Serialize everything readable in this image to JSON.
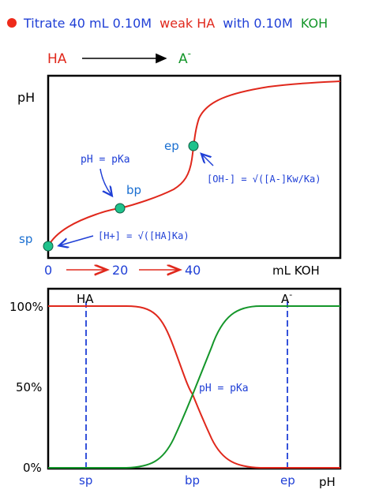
{
  "title": {
    "bullet_color": "#ee2a1a",
    "part1": "Titrate 40 mL 0.10M",
    "part2": "weak HA",
    "part3": "with 0.10M",
    "part4": "KOH"
  },
  "reaction": {
    "reactant": "HA",
    "product": "A",
    "product_charge": "-"
  },
  "chart_top": {
    "type": "line",
    "ylabel": "pH",
    "xlabel": "mL KOH",
    "x_ticks": [
      "0",
      "20",
      "40"
    ],
    "points": [
      {
        "label": "sp",
        "x": 0
      },
      {
        "label": "bp",
        "x": 20
      },
      {
        "label": "ep",
        "x": 40
      }
    ],
    "annotations": {
      "bp": "pH = pKa",
      "ep": "[OH-] = √([A-]Kw/Ka)",
      "sp": "[H+] = √([HA]Ka)"
    },
    "curve_color": "#e0281c",
    "point_color": "#1fc28c"
  },
  "chart_bottom": {
    "type": "line",
    "ylabel_ticks": [
      "100%",
      "50%",
      "0%"
    ],
    "xlabel": "pH",
    "x_ticks": [
      "sp",
      "bp",
      "ep"
    ],
    "series": [
      {
        "name": "HA",
        "color": "#e0281c"
      },
      {
        "name": "A-",
        "color": "#14962a"
      }
    ],
    "series_labels": {
      "HA": "HA",
      "A": "A",
      "A_charge": "-"
    },
    "annotation": "pH = pKa",
    "dashed_color": "#1f3fd6"
  }
}
